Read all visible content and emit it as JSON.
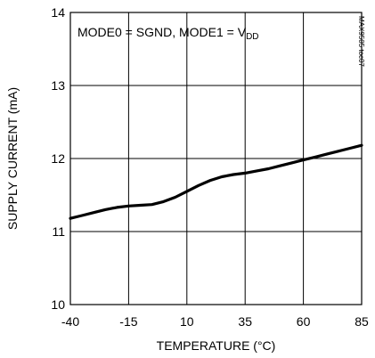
{
  "chart_data": {
    "type": "line",
    "title": "",
    "xlabel": "TEMPERATURE (°C)",
    "ylabel": "SUPPLY CURRENT (mA)",
    "xlim": [
      -40,
      85
    ],
    "ylim": [
      10,
      14
    ],
    "xticks": [
      -40,
      -15,
      10,
      35,
      60,
      85
    ],
    "yticks": [
      10,
      11,
      12,
      13,
      14
    ],
    "x_tick_labels": [
      "-40",
      "-15",
      "10",
      "35",
      "60",
      "85"
    ],
    "y_tick_labels": [
      "10",
      "11",
      "12",
      "13",
      "14"
    ],
    "grid": true,
    "annotation": {
      "prefix": "MODE0 = SGND, MODE1 = V",
      "subscript": "DD"
    },
    "figure_code": "MAX9505 toc07",
    "series": [
      {
        "x": [
          -40,
          -35,
          -30,
          -25,
          -20,
          -15,
          -10,
          -5,
          0,
          5,
          10,
          15,
          20,
          25,
          30,
          35,
          40,
          45,
          50,
          55,
          60,
          65,
          70,
          75,
          80,
          85
        ],
        "y": [
          11.18,
          11.22,
          11.26,
          11.3,
          11.33,
          11.35,
          11.36,
          11.37,
          11.41,
          11.47,
          11.55,
          11.63,
          11.7,
          11.75,
          11.78,
          11.8,
          11.83,
          11.86,
          11.9,
          11.94,
          11.98,
          12.02,
          12.06,
          12.1,
          12.14,
          12.18
        ]
      }
    ]
  }
}
